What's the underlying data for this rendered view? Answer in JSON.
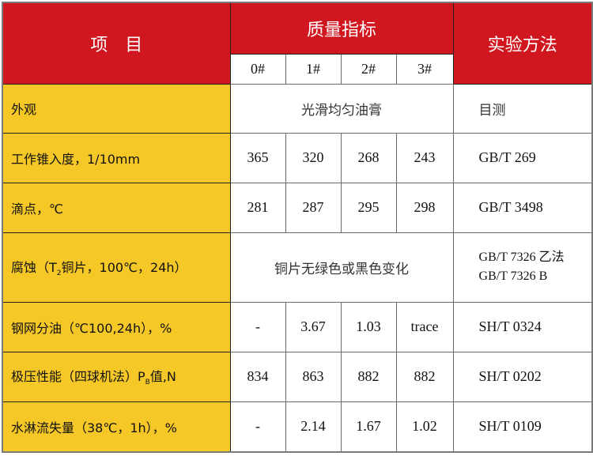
{
  "colors": {
    "header_bg": "#D0161E",
    "item_bg": "#F5C827"
  },
  "header": {
    "item": "项　目",
    "quality": "质量指标",
    "method": "实验方法",
    "grades": [
      "0#",
      "1#",
      "2#",
      "3#"
    ]
  },
  "rows": [
    {
      "item": "外观",
      "merged": "光滑均匀油膏",
      "method": "目测"
    },
    {
      "item": "工作锥入度，1/10mm",
      "values": [
        "365",
        "320",
        "268",
        "243"
      ],
      "method": "GB/T 269"
    },
    {
      "item": "滴点，℃",
      "values": [
        "281",
        "287",
        "295",
        "298"
      ],
      "method": "GB/T 3498"
    },
    {
      "item_pre": "腐蚀（T",
      "item_sub": "2",
      "item_post": "铜片，100℃，24h）",
      "merged": "铜片无绿色或黑色变化",
      "method_lines": [
        "GB/T 7326 乙法",
        "GB/T 7326 B"
      ]
    },
    {
      "item": "钢网分油（℃100,24h），%",
      "values": [
        "-",
        "3.67",
        "1.03",
        "trace"
      ],
      "method": "SH/T 0324"
    },
    {
      "item_pre": "极压性能（四球机法）P",
      "item_sub": "B",
      "item_post": "值,N",
      "values": [
        "834",
        "863",
        "882",
        "882"
      ],
      "method": "SH/T 0202"
    },
    {
      "item": "水淋流失量（38℃，1h），%",
      "values": [
        "-",
        "2.14",
        "1.67",
        "1.02"
      ],
      "method": "SH/T 0109"
    }
  ]
}
